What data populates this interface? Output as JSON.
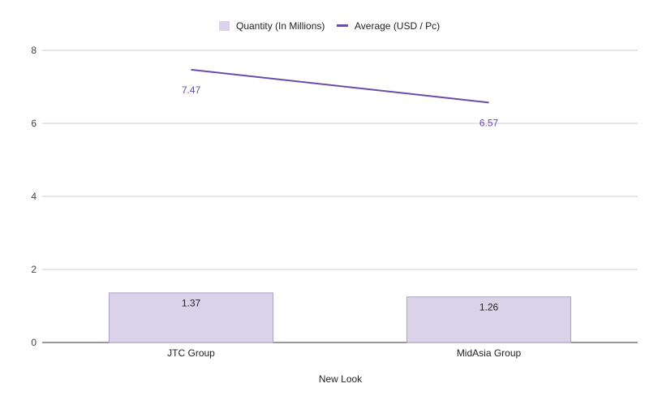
{
  "chart_data": {
    "type": "bar",
    "title": "",
    "xlabel": "New Look",
    "ylabel": "",
    "ylim": [
      0,
      8
    ],
    "yticks": [
      0,
      2,
      4,
      6,
      8
    ],
    "grid": true,
    "legend_position": "top",
    "categories": [
      "JTC Group",
      "MidAsia Group"
    ],
    "series": [
      {
        "name": "Quantity (In Millions)",
        "type": "bar",
        "values": [
          1.37,
          1.26
        ],
        "labels": [
          "1.37",
          "1.26"
        ],
        "color": "#d9d2e9",
        "border_color": "#9f8fc4"
      },
      {
        "name": "Average (USD / Pc)",
        "type": "line",
        "values": [
          7.47,
          6.57
        ],
        "labels": [
          "7.47",
          "6.57"
        ],
        "color": "#674ea7"
      }
    ]
  }
}
